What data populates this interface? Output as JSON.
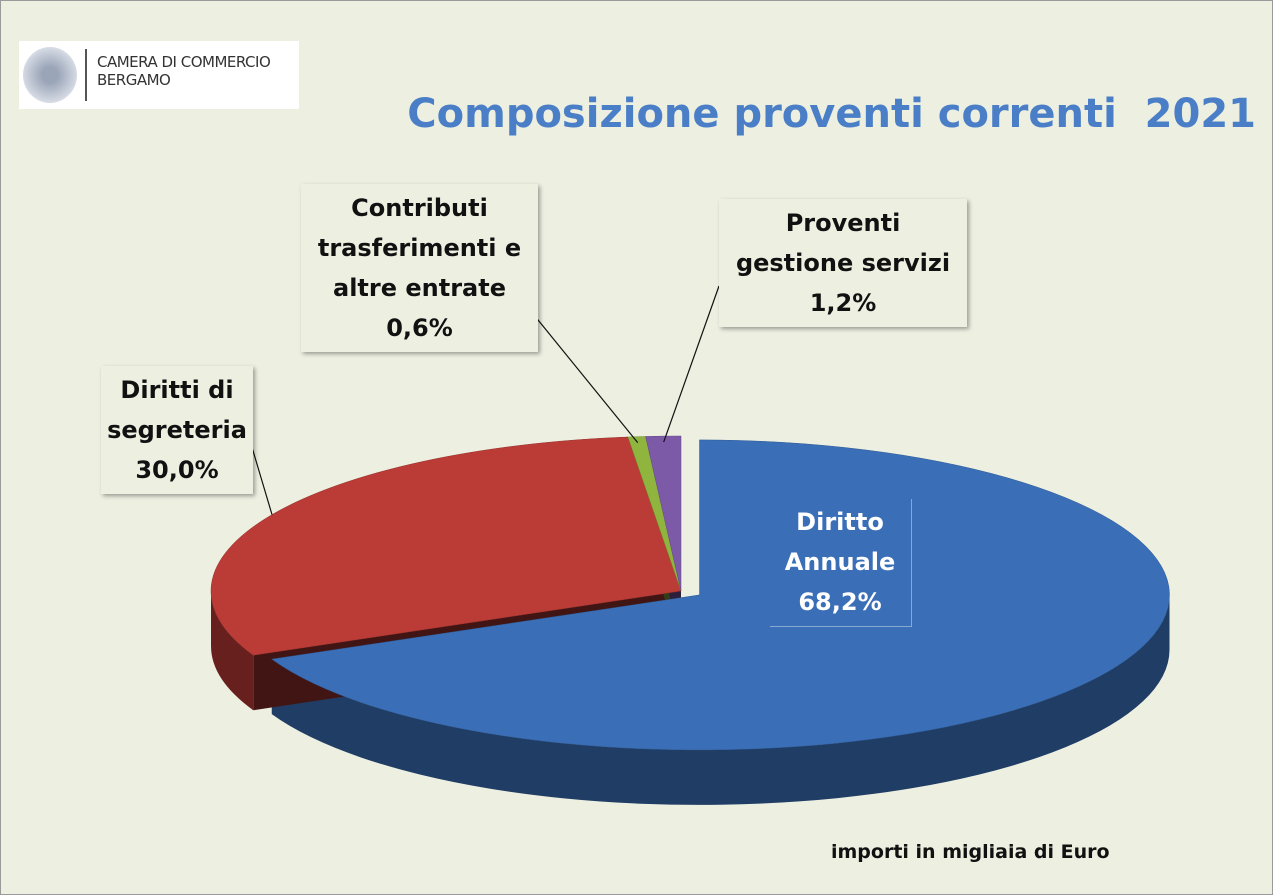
{
  "header": {
    "org": "CAMERA DI COMMERCIO BERGAMO"
  },
  "chart_data": {
    "type": "pie3d",
    "title": "Composizione proventi correnti  2021",
    "categories": [
      "Diritto Annuale",
      "Diritti di segreteria",
      "Contributi trasferimenti e altre entrate",
      "Proventi gestione servizi"
    ],
    "values": [
      68.2,
      30.0,
      0.6,
      1.2
    ],
    "value_labels": [
      "68,2%",
      "30,0%",
      "0,6%",
      "1,2%"
    ],
    "colors": [
      "#3a6fb8",
      "#bb3b36",
      "#8fb53f",
      "#7d5aa8"
    ],
    "note": "importi in migliaia di Euro"
  }
}
